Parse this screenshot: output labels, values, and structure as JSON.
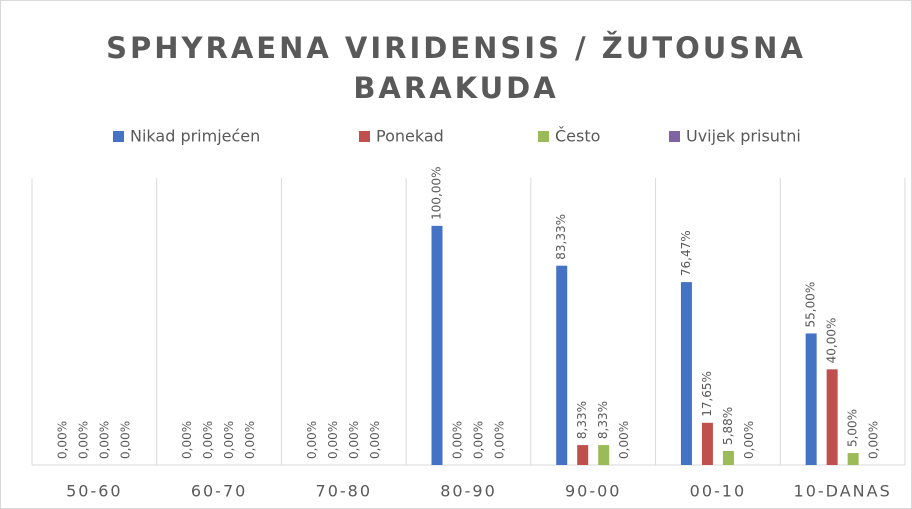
{
  "chart_data": {
    "type": "bar",
    "title": "SPHYRAENA VIRIDENSIS / ŽUTOUSNA BARAKUDA",
    "categories": [
      "50-60",
      "60-70",
      "70-80",
      "80-90",
      "90-00",
      "00-10",
      "10-DANAS"
    ],
    "series": [
      {
        "name": "Nikad primjećen",
        "color": "#4472c4",
        "values": [
          0,
          0,
          0,
          100,
          83.33,
          76.47,
          55
        ],
        "value_labels": [
          "0,00%",
          "0,00%",
          "0,00%",
          "100,00%",
          "83,33%",
          "76,47%",
          "55,00%"
        ]
      },
      {
        "name": "Ponekad",
        "color": "#c0504d",
        "values": [
          0,
          0,
          0,
          0,
          8.33,
          17.65,
          40
        ],
        "value_labels": [
          "0,00%",
          "0,00%",
          "0,00%",
          "0,00%",
          "8,33%",
          "17,65%",
          "40,00%"
        ]
      },
      {
        "name": "Često",
        "color": "#9bbb59",
        "values": [
          0,
          0,
          0,
          0,
          8.33,
          5.88,
          5
        ],
        "value_labels": [
          "0,00%",
          "0,00%",
          "0,00%",
          "0,00%",
          "8,33%",
          "5,88%",
          "5,00%"
        ]
      },
      {
        "name": "Uvijek prisutni",
        "color": "#8064a2",
        "values": [
          0,
          0,
          0,
          0,
          0,
          0,
          0
        ],
        "value_labels": [
          "0,00%",
          "0,00%",
          "0,00%",
          "0,00%",
          "0,00%",
          "0,00%",
          "0,00%"
        ]
      }
    ],
    "ylim": [
      0,
      120
    ],
    "legend": "top"
  }
}
